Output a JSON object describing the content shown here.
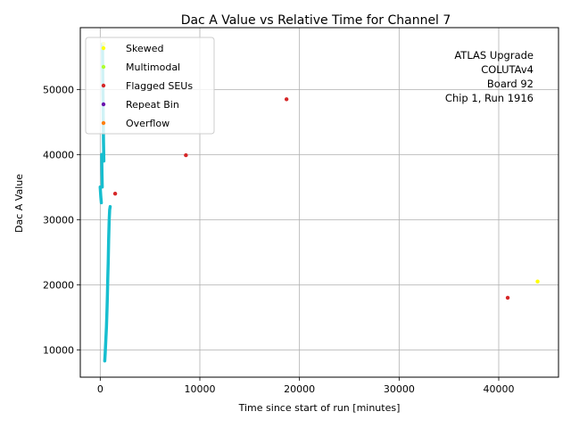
{
  "chart_data": {
    "type": "scatter",
    "title": "Dac A Value vs Relative Time for Channel 7",
    "xlabel": "Time since start of run [minutes]",
    "ylabel": "Dac A Value",
    "xlim": [
      -2000,
      46000
    ],
    "ylim": [
      5800,
      59500
    ],
    "x_ticks": [
      0,
      10000,
      20000,
      30000,
      40000
    ],
    "y_ticks": [
      10000,
      20000,
      30000,
      40000,
      50000
    ],
    "grid": true,
    "legend_placement": "top-left",
    "annotation_lines": [
      "ATLAS Upgrade",
      "COLUTAv4",
      "Board 92",
      "Chip 1, Run 1916"
    ],
    "main_series": {
      "color": "#17becf",
      "segments": [
        [
          [
            0,
            35000
          ],
          [
            60,
            33500
          ],
          [
            110,
            32600
          ]
        ],
        [
          [
            150,
            40000
          ],
          [
            180,
            37000
          ],
          [
            200,
            35000
          ]
        ],
        [
          [
            230,
            57000
          ],
          [
            260,
            52000
          ],
          [
            290,
            47000
          ],
          [
            330,
            42000
          ],
          [
            360,
            39000
          ]
        ],
        [
          [
            450,
            8300
          ],
          [
            500,
            9500
          ],
          [
            560,
            11500
          ],
          [
            620,
            13500
          ],
          [
            680,
            16000
          ],
          [
            720,
            18500
          ],
          [
            760,
            21000
          ],
          [
            800,
            23500
          ],
          [
            850,
            27000
          ],
          [
            900,
            30000
          ],
          [
            950,
            31500
          ],
          [
            1000,
            32000
          ]
        ]
      ]
    },
    "series": [
      {
        "name": "Skewed",
        "color": "#ffff00",
        "points": [
          [
            350,
            57000
          ],
          [
            43900,
            20500
          ]
        ]
      },
      {
        "name": "Multimodal",
        "color": "#adff2f",
        "points": []
      },
      {
        "name": "Flagged SEUs",
        "color": "#d62728",
        "points": [
          [
            1500,
            34000
          ],
          [
            8600,
            39900
          ],
          [
            18700,
            48500
          ],
          [
            40900,
            18000
          ]
        ]
      },
      {
        "name": "Repeat Bin",
        "color": "#6a0dad",
        "points": []
      },
      {
        "name": "Overflow",
        "color": "#ff7f0e",
        "points": []
      }
    ]
  }
}
